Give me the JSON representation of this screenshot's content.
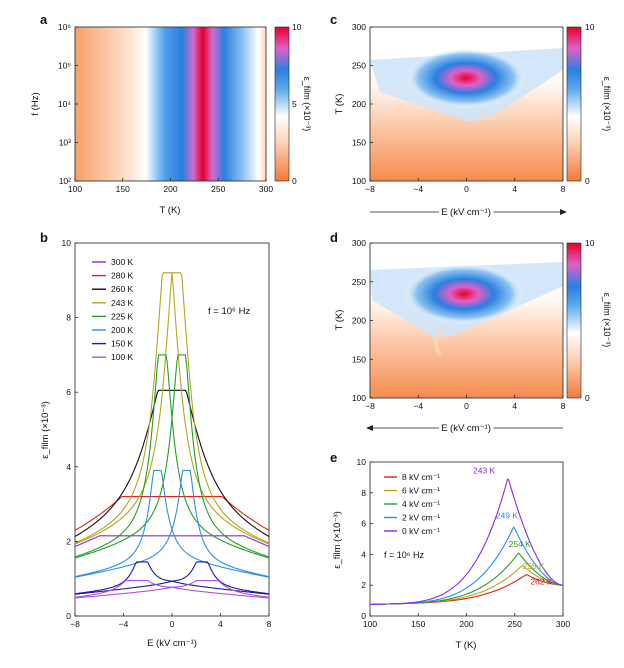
{
  "chart_data": [
    {
      "panel": "a",
      "type": "heatmap",
      "xlabel": "T (K)",
      "ylabel": "f (Hz)",
      "xlim": [
        100,
        300
      ],
      "ylim_log10": [
        2,
        6
      ],
      "xticks": [
        100,
        150,
        200,
        250,
        300
      ],
      "yticks": [
        "10²",
        "10³",
        "10⁴",
        "10⁵",
        "10⁶"
      ],
      "colorbar": {
        "label": "ε_film (×10⁻³)",
        "min": 0,
        "max": 10,
        "ticks": [
          "0",
          "5",
          "10"
        ]
      },
      "peak_T": 243
    },
    {
      "panel": "c",
      "type": "heatmap",
      "xlabel": "E (kV cm⁻¹)",
      "ylabel": "T (K)",
      "xlim": [
        -8,
        8
      ],
      "ylim": [
        100,
        300
      ],
      "xticks": [
        "−8",
        "−4",
        "0",
        "4",
        "8"
      ],
      "yticks": [
        "100",
        "150",
        "200",
        "250",
        "300"
      ],
      "sweep": "forward",
      "colorbar": {
        "label": "ε_film (×10⁻³)",
        "ticks": [
          "0",
          "10"
        ]
      }
    },
    {
      "panel": "d",
      "type": "heatmap",
      "xlabel": "E (kV cm⁻¹)",
      "ylabel": "T (K)",
      "xlim": [
        -8,
        8
      ],
      "ylim": [
        100,
        300
      ],
      "xticks": [
        "−8",
        "−4",
        "0",
        "4",
        "8"
      ],
      "yticks": [
        "100",
        "150",
        "200",
        "250",
        "300"
      ],
      "sweep": "backward",
      "colorbar": {
        "label": "ε_film (×10⁻³)",
        "ticks": [
          "0",
          "10"
        ]
      }
    },
    {
      "panel": "b",
      "type": "line",
      "xlabel": "E (kV cm⁻¹)",
      "ylabel": "ε_film (×10⁻³)",
      "xlim": [
        -8,
        8
      ],
      "ylim": [
        0,
        10
      ],
      "xticks": [
        "−8",
        "−4",
        "0",
        "4",
        "8"
      ],
      "yticks": [
        "0",
        "2",
        "4",
        "6",
        "8",
        "10"
      ],
      "annotation": "f = 10⁶ Hz",
      "series": [
        {
          "name": "300 K",
          "color": "#8a2be2",
          "peak": 2.15,
          "base": 1.95,
          "width": 9,
          "split": 0
        },
        {
          "name": "280 K",
          "color": "#e02020",
          "peak": 3.2,
          "base": 2.75,
          "width": 5,
          "split": 0
        },
        {
          "name": "260 K",
          "color": "#111111",
          "peak": 6.05,
          "base": 2.6,
          "width": 2.4,
          "split": 0
        },
        {
          "name": "243 K",
          "color": "#b5a520",
          "peak": 9.2,
          "base": 2.65,
          "width": 1.1,
          "split": 0.4
        },
        {
          "name": "225 K",
          "color": "#23a023",
          "peak": 7.0,
          "base": 2.2,
          "width": 0.9,
          "split": 0.8
        },
        {
          "name": "200 K",
          "color": "#2b8fe6",
          "peak": 3.9,
          "base": 1.5,
          "width": 0.75,
          "split": 1.2
        },
        {
          "name": "150 K",
          "color": "#1a1aa0",
          "peak": 1.45,
          "base": 0.85,
          "width": 0.8,
          "split": 2.5
        },
        {
          "name": "100 K",
          "color": "#b050e0",
          "peak": 0.95,
          "base": 0.7,
          "width": 1.2,
          "split": 3
        }
      ]
    },
    {
      "panel": "e",
      "type": "line",
      "xlabel": "T (K)",
      "ylabel": "ε_film (×10⁻³)",
      "xlim": [
        100,
        300
      ],
      "ylim": [
        0,
        10
      ],
      "xticks": [
        "100",
        "150",
        "200",
        "250",
        "300"
      ],
      "yticks": [
        "0",
        "2",
        "4",
        "6",
        "8",
        "10"
      ],
      "annotation": "f = 10⁶ Hz",
      "series": [
        {
          "name": "8 kV cm⁻¹",
          "color": "#e02020",
          "peak_T": 262,
          "peak": 2.7,
          "label": "262 K"
        },
        {
          "name": "6 kV cm⁻¹",
          "color": "#b5a520",
          "peak_T": 258,
          "peak": 3.3,
          "label": "258 K"
        },
        {
          "name": "4 kV cm⁻¹",
          "color": "#23a023",
          "peak_T": 254,
          "peak": 4.1,
          "label": "254 K"
        },
        {
          "name": "2 kV cm⁻¹",
          "color": "#2b8fe6",
          "peak_T": 249,
          "peak": 5.8,
          "label": "249 K"
        },
        {
          "name": "0 kV cm⁻¹",
          "color": "#8a2be2",
          "peak_T": 243,
          "peak": 9.0,
          "label": "243 K"
        }
      ]
    }
  ]
}
